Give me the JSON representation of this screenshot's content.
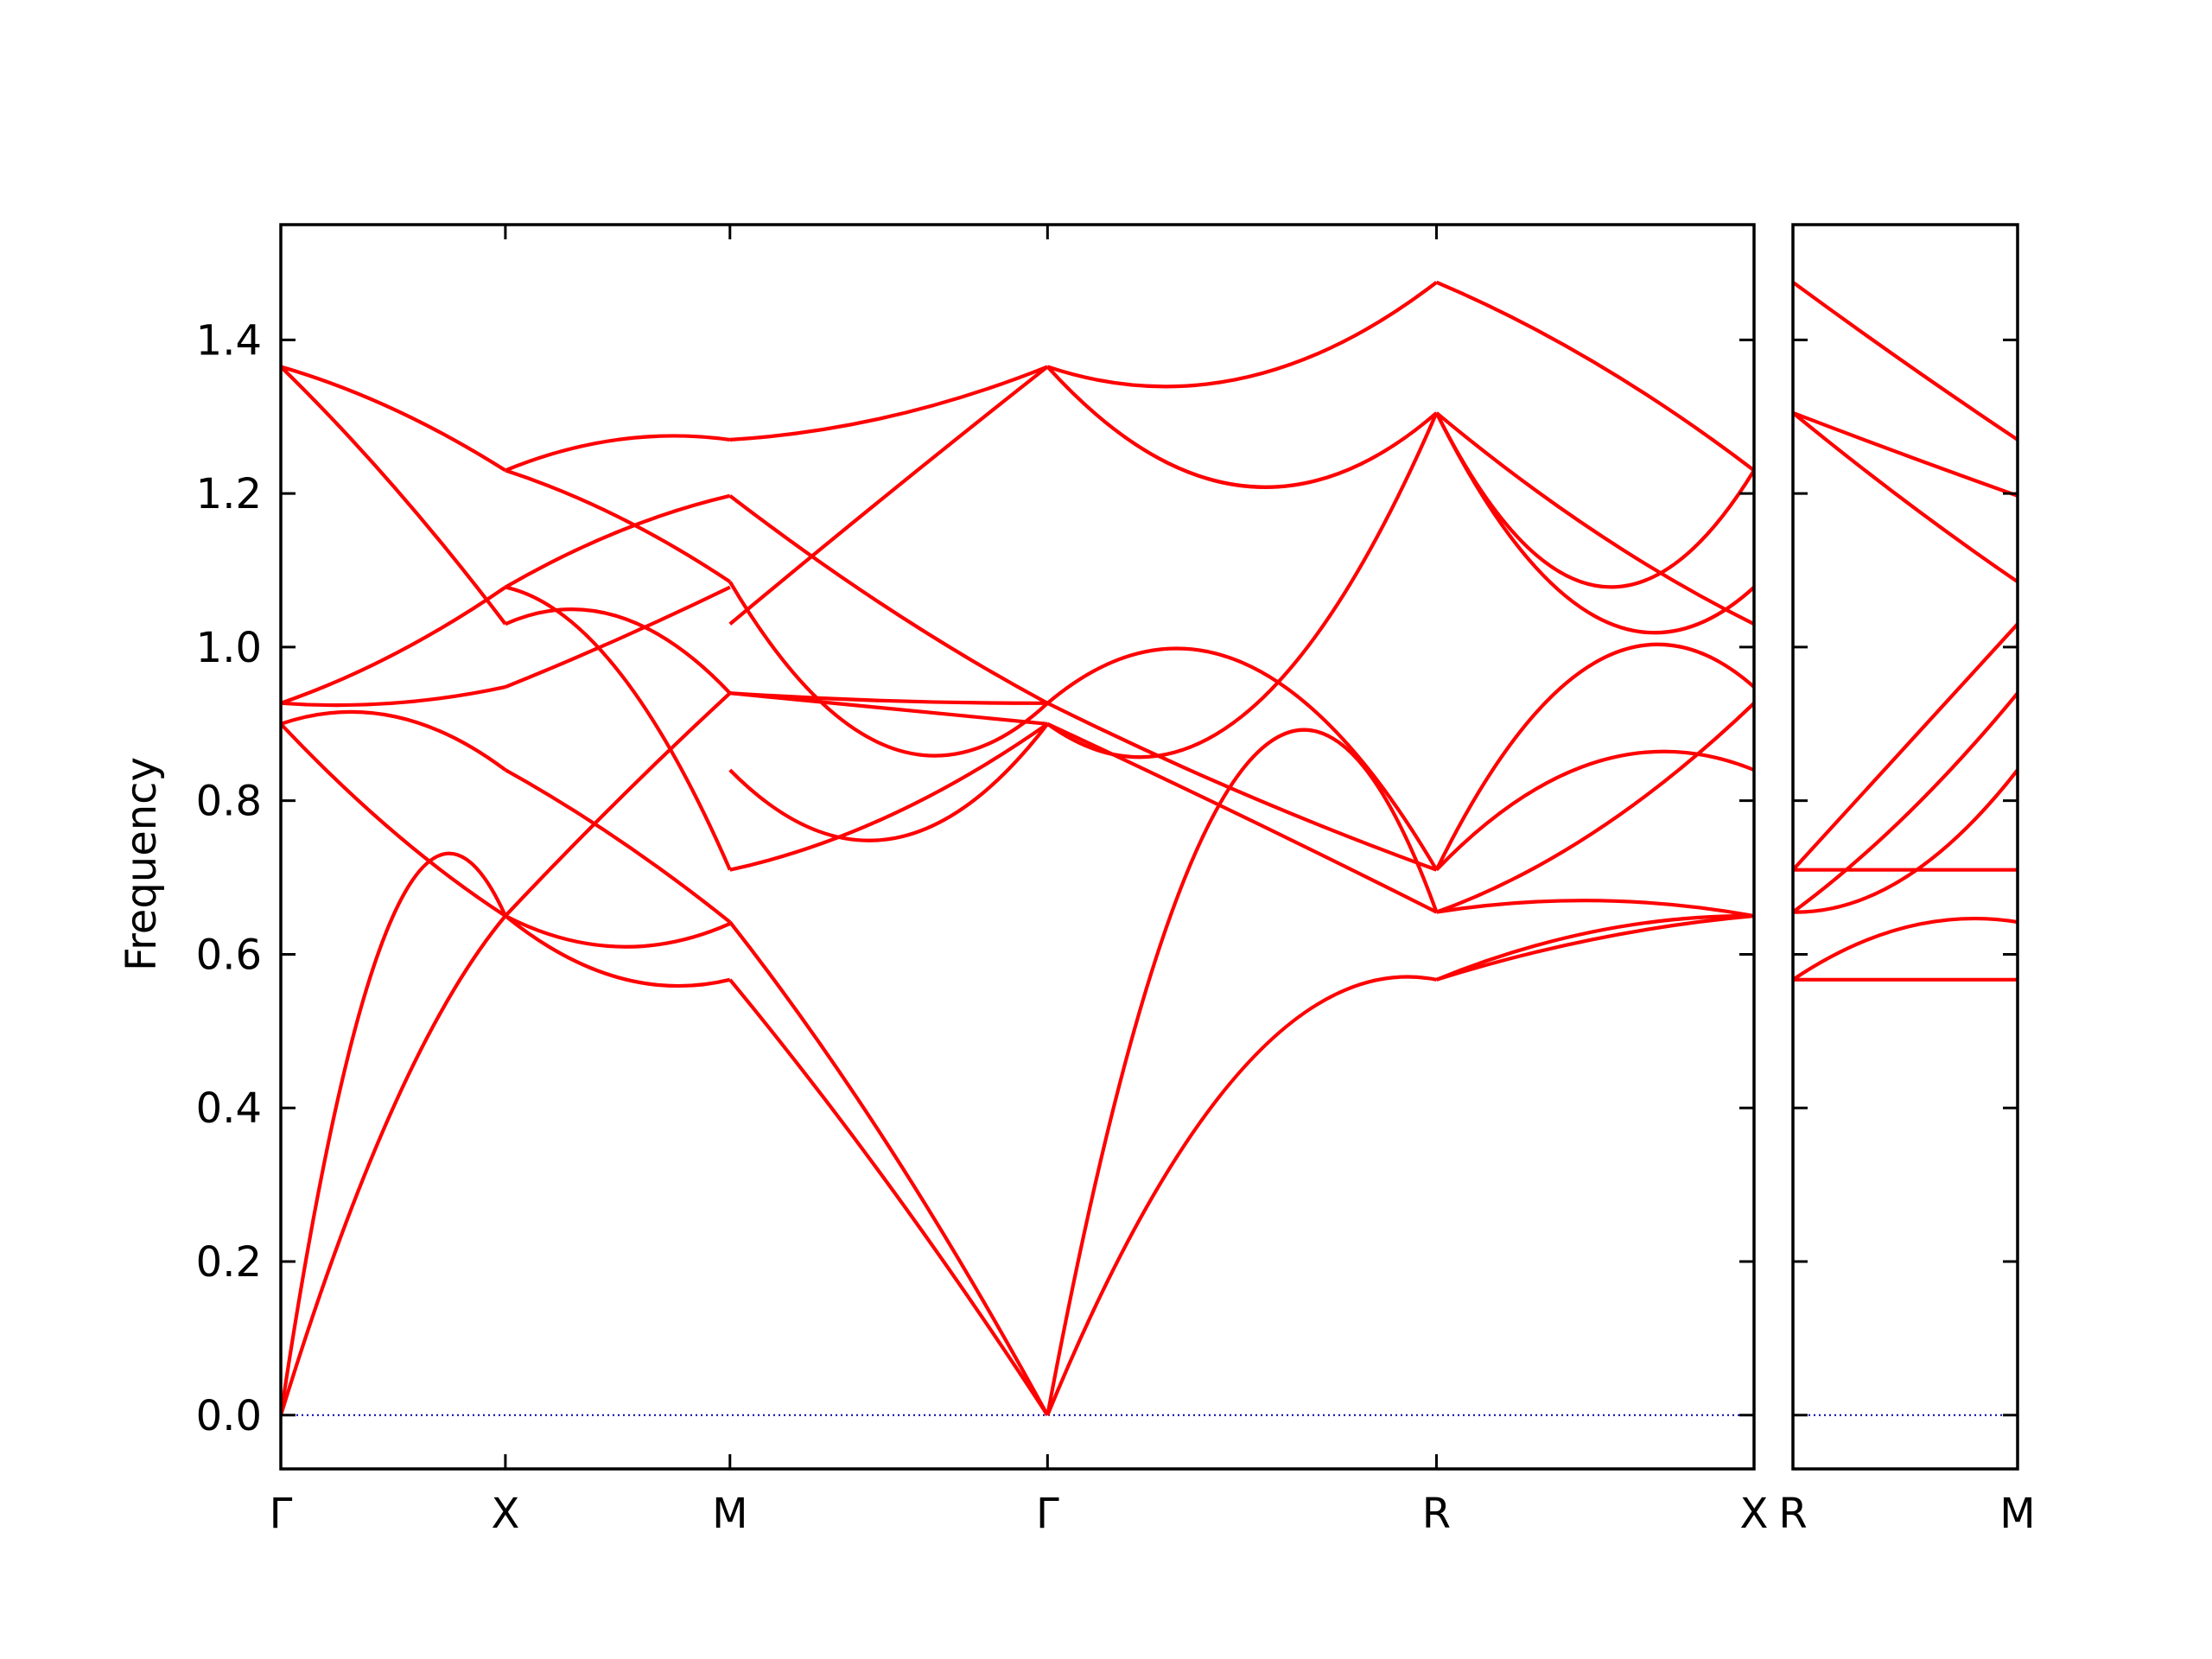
{
  "colors": {
    "band": "#ff0000",
    "zero_line": "#0000aa",
    "axes": "#000000",
    "background": "#ffffff"
  },
  "chart_data": {
    "type": "line",
    "title": "",
    "xlabel": "",
    "ylabel": "Frequency",
    "ylim": [
      -0.07,
      1.55
    ],
    "y_ticks": [
      0.0,
      0.2,
      0.4,
      0.6,
      0.8,
      1.0,
      1.2,
      1.4
    ],
    "y_tick_labels": [
      "0.0",
      "0.2",
      "0.4",
      "0.6",
      "0.8",
      "1.0",
      "1.2",
      "1.4"
    ],
    "grid": false,
    "legend": "none",
    "zero_line": {
      "y": 0.0,
      "style": "dotted"
    },
    "panels": [
      {
        "x_ticks": [
          0.0,
          0.5,
          1.0,
          1.7071,
          2.5731,
          3.2802
        ],
        "x_tick_labels": [
          "Γ",
          "X",
          "M",
          "Γ",
          "R",
          "X"
        ],
        "xlim": [
          0.0,
          3.2802
        ],
        "segments": [
          {
            "from": "Γ",
            "to": "X",
            "x_start": 0.0,
            "x_end": 0.5,
            "bands": [
              [
                0.0,
                0.65,
                0.65
              ],
              [
                0.0,
                0.4,
                0.65
              ],
              [
                0.9,
                0.76,
                0.65
              ],
              [
                0.9,
                0.91,
                0.84
              ],
              [
                0.927,
                0.927,
                0.948
              ],
              [
                0.927,
                0.99,
                1.078
              ],
              [
                1.365,
                1.21,
                1.03
              ],
              [
                1.365,
                1.31,
                1.23
              ]
            ]
          },
          {
            "from": "X",
            "to": "M",
            "x_start": 0.5,
            "x_end": 1.0,
            "bands": [
              [
                0.65,
                0.57,
                0.567
              ],
              [
                0.65,
                0.61,
                0.64
              ],
              [
                0.65,
                0.8,
                0.94
              ],
              [
                0.84,
                0.75,
                0.642
              ],
              [
                0.948,
                1.01,
                1.078
              ],
              [
                1.078,
                0.97,
                0.71
              ],
              [
                1.03,
                1.04,
                0.94
              ],
              [
                1.23,
                1.17,
                1.085
              ],
              [
                1.23,
                1.27,
                1.27
              ],
              [
                1.078,
                1.15,
                1.197
              ]
            ]
          },
          {
            "from": "M",
            "to": "Γ",
            "x_start": 1.0,
            "x_end": 1.7071,
            "bands": [
              [
                0.567,
                0.3,
                0.0
              ],
              [
                0.642,
                0.35,
                0.0
              ],
              [
                0.71,
                0.78,
                0.9
              ],
              [
                0.84,
                0.75,
                0.9
              ],
              [
                0.94,
                0.92,
                0.9
              ],
              [
                0.94,
                0.93,
                0.927
              ],
              [
                1.085,
                0.87,
                0.927
              ],
              [
                1.03,
                1.2,
                1.365
              ],
              [
                1.197,
                1.05,
                0.927
              ],
              [
                1.27,
                1.3,
                1.365
              ]
            ]
          },
          {
            "from": "Γ",
            "to": "R",
            "x_start": 1.7071,
            "x_end": 2.5731,
            "bands": [
              [
                0.0,
                0.45,
                0.567
              ],
              [
                0.0,
                0.84,
                0.655
              ],
              [
                0.9,
                0.78,
                0.655
              ],
              [
                0.927,
                0.81,
                0.71
              ],
              [
                0.9,
                0.91,
                1.305
              ],
              [
                0.927,
                0.98,
                0.71
              ],
              [
                1.365,
                1.21,
                1.305
              ],
              [
                1.365,
                1.35,
                1.475
              ]
            ]
          },
          {
            "from": "R",
            "to": "X",
            "x_start": 2.5731,
            "x_end": 3.2802,
            "bands": [
              [
                0.567,
                0.62,
                0.65
              ],
              [
                0.567,
                0.63,
                0.65
              ],
              [
                0.655,
                0.67,
                0.65
              ],
              [
                0.655,
                0.76,
                0.927
              ],
              [
                0.71,
                0.85,
                0.84
              ],
              [
                0.71,
                0.98,
                0.948
              ],
              [
                1.305,
                1.08,
                1.23
              ],
              [
                1.305,
                1.04,
                1.078
              ],
              [
                1.305,
                1.15,
                1.03
              ],
              [
                1.475,
                1.37,
                1.23
              ]
            ]
          }
        ]
      },
      {
        "x_ticks": [
          0.0,
          0.5
        ],
        "x_tick_labels": [
          "R",
          "M"
        ],
        "xlim": [
          0.0,
          0.5
        ],
        "segments": [
          {
            "from": "R",
            "to": "M",
            "x_start": 0.0,
            "x_end": 0.5,
            "bands": [
              [
                0.567,
                0.567,
                0.567
              ],
              [
                0.567,
                0.635,
                0.642
              ],
              [
                0.655,
                0.7,
                0.84
              ],
              [
                0.655,
                0.78,
                0.94
              ],
              [
                0.71,
                0.71,
                0.71
              ],
              [
                0.71,
                0.87,
                1.03
              ],
              [
                1.305,
                1.19,
                1.085
              ],
              [
                1.305,
                1.25,
                1.197
              ],
              [
                1.475,
                1.37,
                1.27
              ]
            ]
          }
        ]
      }
    ]
  }
}
